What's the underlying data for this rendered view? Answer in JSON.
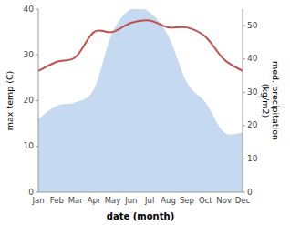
{
  "chart_data": {
    "type": "line",
    "xlabel": "date (month)",
    "ylabel": "max temp (C)",
    "y2label": "med. precipitation\n(kg/m2)",
    "categories": [
      "Jan",
      "Feb",
      "Mar",
      "Apr",
      "May",
      "Jun",
      "Jul",
      "Aug",
      "Sep",
      "Oct",
      "Nov",
      "Dec"
    ],
    "series": [
      {
        "type": "area",
        "axis": "y2",
        "color": "#c5d9f1",
        "values": [
          22.0,
          26.0,
          27.0,
          31.0,
          48.0,
          55.0,
          54.0,
          47.0,
          33.0,
          27.0,
          18.0,
          18.0
        ]
      },
      {
        "type": "line",
        "color": "#c0504d",
        "values": [
          26.5,
          28.5,
          29.5,
          35.0,
          35.0,
          37.0,
          37.5,
          36.0,
          36.0,
          34.0,
          29.0,
          26.5
        ]
      }
    ],
    "ylim": [
      0,
      40
    ],
    "yticks": [
      0,
      10,
      20,
      30,
      40
    ],
    "y2lim": [
      0,
      55
    ],
    "y2ticks": [
      0,
      10,
      20,
      30,
      40,
      50
    ],
    "grid": false
  }
}
